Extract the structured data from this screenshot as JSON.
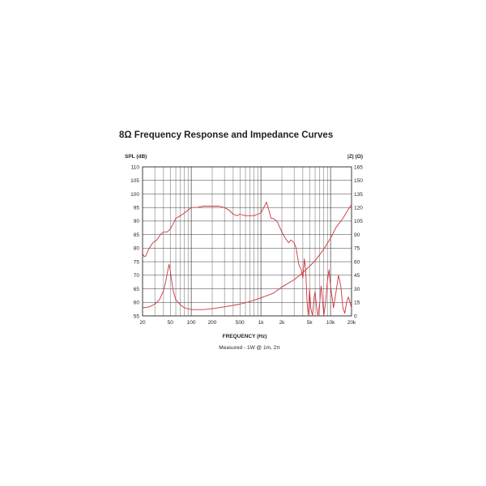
{
  "chart_data": {
    "type": "line",
    "title": "8Ω Frequency Response and Impedance Curves",
    "xlabel": "FREQUENCY (Hz)",
    "ylabel_left": "SPL (dB)",
    "ylabel_right": "|Z| (Ω)",
    "subtitle": "Measured - 1W @ 1m, 2π",
    "x_scale": "log",
    "xlim": [
      20,
      20000
    ],
    "ylim_left": [
      55,
      110
    ],
    "ylim_right": [
      0,
      165
    ],
    "x_tick_labels": [
      {
        "value": 20,
        "label": "20"
      },
      {
        "value": 50,
        "label": "50"
      },
      {
        "value": 100,
        "label": "100"
      },
      {
        "value": 200,
        "label": "200"
      },
      {
        "value": 500,
        "label": "500"
      },
      {
        "value": 1000,
        "label": "1k"
      },
      {
        "value": 2000,
        "label": "2k"
      },
      {
        "value": 5000,
        "label": "5k"
      },
      {
        "value": 10000,
        "label": "10k"
      },
      {
        "value": 20000,
        "label": "20k"
      }
    ],
    "y_left_ticks": [
      110,
      105,
      100,
      95,
      90,
      85,
      80,
      75,
      70,
      65,
      60,
      55
    ],
    "y_right_ticks": [
      165,
      150,
      135,
      120,
      105,
      90,
      75,
      60,
      45,
      30,
      15,
      0
    ],
    "grid": true,
    "line_color": "#d2323c",
    "series": [
      {
        "axis": "left",
        "x": [
          20,
          21,
          22,
          25,
          28,
          32,
          36,
          40,
          45,
          50,
          55,
          60,
          70,
          80,
          90,
          100,
          120,
          150,
          180,
          200,
          250,
          300,
          350,
          400,
          450,
          500,
          600,
          700,
          800,
          900,
          1000,
          1100,
          1200,
          1300,
          1400,
          1500,
          1700,
          2000,
          2200,
          2500,
          2700,
          3000,
          3200,
          3500,
          3800,
          4000,
          4200,
          4400,
          4600,
          4800,
          5000,
          5200,
          5500,
          5800,
          6000,
          6300,
          6600,
          7000,
          7300,
          7600,
          8000,
          8500,
          9000,
          9500,
          10000,
          10500,
          11000,
          12000,
          13000,
          14000,
          15000,
          16000,
          17000,
          18000,
          19000,
          20000
        ],
        "y": [
          78,
          77,
          77,
          80,
          82,
          83,
          85,
          86,
          86,
          87,
          89,
          91,
          92,
          93,
          94,
          95,
          95,
          95.5,
          95.5,
          95.5,
          95.5,
          95,
          94,
          92.5,
          92,
          92.5,
          92,
          92,
          92,
          92.5,
          93,
          95,
          97,
          94,
          91,
          91,
          90,
          86,
          84,
          82,
          83,
          82,
          80,
          74,
          72,
          69,
          76,
          72,
          60,
          55,
          65,
          58,
          55,
          62,
          64,
          58,
          55,
          60,
          66,
          62,
          55,
          60,
          68,
          72,
          66,
          62,
          58,
          64,
          70,
          66,
          58,
          56,
          60,
          62,
          60,
          58
        ]
      },
      {
        "axis": "right",
        "x": [
          20,
          25,
          30,
          35,
          40,
          43,
          46,
          48,
          50,
          52,
          55,
          60,
          70,
          80,
          100,
          150,
          200,
          300,
          500,
          700,
          1000,
          1500,
          2000,
          3000,
          4000,
          5000,
          6000,
          7000,
          8000,
          10000,
          12000,
          15000,
          18000,
          20000
        ],
        "y": [
          9,
          10,
          13,
          18,
          28,
          38,
          50,
          57,
          50,
          40,
          28,
          18,
          12,
          9,
          7,
          7,
          8,
          10,
          13,
          16,
          20,
          25,
          32,
          40,
          48,
          55,
          61,
          68,
          74,
          86,
          98,
          108,
          118,
          123
        ]
      }
    ]
  }
}
